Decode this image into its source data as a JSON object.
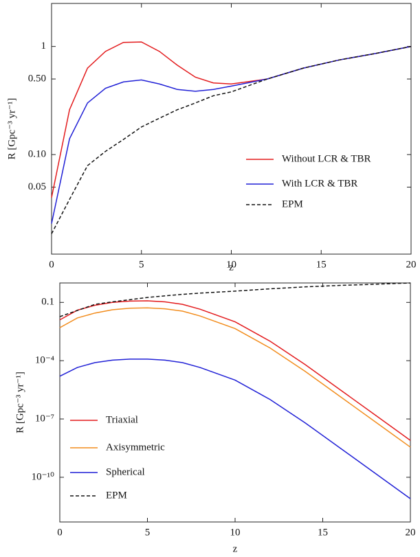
{
  "chart_data": [
    {
      "type": "line",
      "xlabel": "z",
      "ylabel": "R [Gpc⁻³ yr⁻¹]",
      "log_y": true,
      "xlim": [
        0,
        20
      ],
      "xticks": [
        0,
        5,
        10,
        15,
        20
      ],
      "ylim": [
        0.012,
        2.5
      ],
      "yticks": [
        0.05,
        {
          "value": 0.1,
          "label": "0.10"
        },
        {
          "value": 0.5,
          "label": "0.50"
        },
        1
      ],
      "x": [
        0,
        1,
        2,
        3,
        4,
        5,
        6,
        7,
        8,
        9,
        10,
        12,
        14,
        16,
        18,
        20
      ],
      "series": [
        {
          "name": "Without LCR & TBR",
          "color": "#e31a1c",
          "dashed": false,
          "values": [
            0.04,
            0.26,
            0.63,
            0.9,
            1.09,
            1.1,
            0.9,
            0.67,
            0.52,
            0.46,
            0.45,
            0.5,
            0.63,
            0.75,
            0.86,
            1
          ]
        },
        {
          "name": "With LCR & TBR",
          "color": "#1f1fd6",
          "dashed": false,
          "values": [
            0.023,
            0.14,
            0.3,
            0.41,
            0.47,
            0.49,
            0.45,
            0.4,
            0.385,
            0.4,
            0.43,
            0.5,
            0.63,
            0.75,
            0.86,
            1
          ]
        },
        {
          "name": "EPM",
          "color": "#111111",
          "dashed": true,
          "values": [
            0.0185,
            0.0385,
            0.079,
            0.107,
            0.138,
            0.18,
            0.217,
            0.26,
            0.3,
            0.35,
            0.38,
            0.5,
            0.63,
            0.75,
            0.86,
            1
          ]
        }
      ]
    },
    {
      "type": "line",
      "xlabel": "z",
      "ylabel": "R [Gpc⁻³ yr⁻¹]",
      "log_y": true,
      "xlim": [
        0,
        20
      ],
      "xticks": [
        0,
        5,
        10,
        15,
        20
      ],
      "ylim": [
        5e-13,
        1
      ],
      "yticks": [
        {
          "value": 1e-10,
          "label": "10⁻¹⁰"
        },
        {
          "value": 1e-07,
          "label": "10⁻⁷"
        },
        {
          "value": 0.0001,
          "label": "10⁻⁴"
        },
        0.1
      ],
      "x": [
        0,
        1,
        2,
        3,
        4,
        5,
        6,
        7,
        8,
        10,
        12,
        14,
        16,
        18,
        20
      ],
      "series": [
        {
          "name": "Triaxial",
          "color": "#e31a1c",
          "dashed": false,
          "values": [
            0.0126,
            0.0398,
            0.0708,
            0.1,
            0.117,
            0.12,
            0.107,
            0.0794,
            0.0447,
            0.01,
            0.001,
            6.3e-05,
            3.16e-06,
            1.58e-07,
            7.9e-09
          ]
        },
        {
          "name": "Axisymmetric",
          "color": "#f28c1c",
          "dashed": false,
          "values": [
            0.005,
            0.0158,
            0.0282,
            0.0417,
            0.05,
            0.0525,
            0.0468,
            0.0355,
            0.02,
            0.00447,
            0.000447,
            2.82e-05,
            1.41e-06,
            7.08e-08,
            3.55e-09
          ]
        },
        {
          "name": "Spherical",
          "color": "#1f1fd6",
          "dashed": false,
          "values": [
            1.58e-05,
            4.47e-05,
            7.94e-05,
            0.000107,
            0.00012,
            0.00012,
            0.000107,
            7.94e-05,
            4.47e-05,
            1e-05,
            1e-06,
            6.3e-08,
            3.16e-09,
            1.58e-10,
            7.9e-12
          ]
        },
        {
          "name": "EPM",
          "color": "#111111",
          "dashed": true,
          "values": [
            0.0185,
            0.0385,
            0.079,
            0.107,
            0.138,
            0.18,
            0.217,
            0.26,
            0.3,
            0.38,
            0.5,
            0.63,
            0.75,
            0.86,
            1
          ]
        }
      ]
    }
  ]
}
